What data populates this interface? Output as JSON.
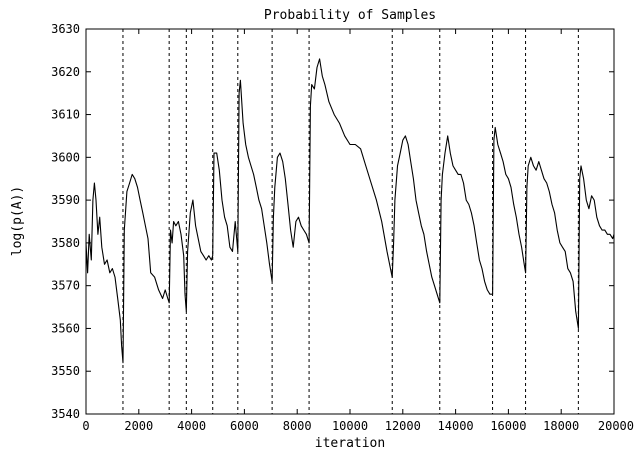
{
  "chart_data": {
    "type": "line",
    "title": "Probability of Samples",
    "xlabel": "iteration",
    "ylabel": "log(p(A))",
    "xlim": [
      0,
      20000
    ],
    "ylim": [
      3540,
      3630
    ],
    "grid": false,
    "legend": "none",
    "x_ticks": [
      0,
      2000,
      4000,
      6000,
      8000,
      10000,
      12000,
      14000,
      16000,
      18000,
      20000
    ],
    "y_ticks": [
      3540,
      3550,
      3560,
      3570,
      3580,
      3590,
      3600,
      3610,
      3620,
      3630
    ],
    "vertical_lines": [
      1400,
      3150,
      3800,
      4800,
      5750,
      7050,
      8450,
      11600,
      13400,
      15400,
      16650,
      18650
    ],
    "series": [
      {
        "color": "#000000",
        "x": [
          0,
          60,
          120,
          200,
          260,
          320,
          380,
          450,
          520,
          600,
          700,
          800,
          900,
          1000,
          1100,
          1200,
          1300,
          1350,
          1400,
          1450,
          1550,
          1650,
          1750,
          1850,
          1950,
          2050,
          2150,
          2250,
          2350,
          2450,
          2600,
          2750,
          2900,
          3000,
          3100,
          3150,
          3200,
          3260,
          3320,
          3400,
          3500,
          3600,
          3700,
          3750,
          3800,
          3850,
          3950,
          4050,
          4150,
          4250,
          4350,
          4450,
          4550,
          4650,
          4750,
          4800,
          4850,
          4950,
          5050,
          5150,
          5250,
          5350,
          5450,
          5550,
          5650,
          5750,
          5800,
          5850,
          5950,
          6050,
          6150,
          6250,
          6350,
          6450,
          6550,
          6650,
          6750,
          6850,
          6950,
          7050,
          7100,
          7150,
          7250,
          7350,
          7450,
          7550,
          7650,
          7750,
          7850,
          7950,
          8050,
          8150,
          8250,
          8350,
          8450,
          8500,
          8550,
          8650,
          8750,
          8850,
          8950,
          9050,
          9200,
          9400,
          9600,
          9800,
          10000,
          10200,
          10400,
          10600,
          10800,
          11000,
          11200,
          11400,
          11500,
          11600,
          11650,
          11700,
          11800,
          11900,
          12000,
          12100,
          12200,
          12300,
          12400,
          12500,
          12600,
          12700,
          12800,
          12900,
          13000,
          13100,
          13200,
          13300,
          13400,
          13450,
          13500,
          13600,
          13700,
          13800,
          13900,
          14000,
          14100,
          14200,
          14300,
          14400,
          14500,
          14600,
          14700,
          14800,
          14900,
          15000,
          15100,
          15200,
          15300,
          15400,
          15450,
          15500,
          15600,
          15700,
          15800,
          15900,
          16000,
          16100,
          16200,
          16300,
          16400,
          16500,
          16600,
          16650,
          16700,
          16750,
          16850,
          16950,
          17050,
          17150,
          17250,
          17350,
          17450,
          17550,
          17650,
          17750,
          17850,
          17950,
          18050,
          18150,
          18250,
          18350,
          18450,
          18550,
          18650,
          18700,
          18750,
          18850,
          18950,
          19050,
          19150,
          19250,
          19350,
          19450,
          19550,
          19650,
          19750,
          19850,
          19950,
          20000
        ],
        "y": [
          3580,
          3573,
          3582,
          3576,
          3590,
          3594,
          3590,
          3582,
          3586,
          3579,
          3575,
          3576,
          3573,
          3574,
          3572,
          3567,
          3562,
          3556,
          3552,
          3583,
          3592,
          3594,
          3596,
          3595,
          3593,
          3590,
          3587,
          3584,
          3581,
          3573,
          3572,
          3569,
          3567,
          3569,
          3567,
          3566,
          3583,
          3580,
          3585,
          3584,
          3585,
          3582,
          3577,
          3568,
          3564,
          3578,
          3587,
          3590,
          3584,
          3581,
          3578,
          3577,
          3576,
          3577,
          3576,
          3577,
          3601,
          3601,
          3597,
          3590,
          3586,
          3584,
          3579,
          3578,
          3585,
          3578,
          3615,
          3618,
          3608,
          3603,
          3600,
          3598,
          3596,
          3593,
          3590,
          3588,
          3584,
          3580,
          3575,
          3571,
          3586,
          3593,
          3600,
          3601,
          3599,
          3595,
          3589,
          3583,
          3579,
          3585,
          3586,
          3584,
          3583,
          3582,
          3580,
          3612,
          3617,
          3616,
          3621,
          3623,
          3619,
          3617,
          3613,
          3610,
          3608,
          3605,
          3603,
          3603,
          3602,
          3598,
          3594,
          3590,
          3585,
          3578,
          3575,
          3572,
          3580,
          3590,
          3598,
          3601,
          3604,
          3605,
          3603,
          3599,
          3595,
          3590,
          3587,
          3584,
          3582,
          3578,
          3575,
          3572,
          3570,
          3568,
          3566,
          3590,
          3596,
          3601,
          3605,
          3601,
          3598,
          3597,
          3596,
          3596,
          3594,
          3590,
          3589,
          3587,
          3584,
          3580,
          3576,
          3574,
          3571,
          3569,
          3568,
          3568,
          3604,
          3607,
          3603,
          3601,
          3599,
          3596,
          3595,
          3593,
          3589,
          3586,
          3582,
          3579,
          3575,
          3573,
          3593,
          3598,
          3600,
          3598,
          3597,
          3599,
          3597,
          3595,
          3594,
          3592,
          3589,
          3587,
          3583,
          3580,
          3579,
          3578,
          3574,
          3573,
          3571,
          3564,
          3560,
          3595,
          3598,
          3595,
          3590,
          3588,
          3591,
          3590,
          3586,
          3584,
          3583,
          3583,
          3582,
          3582,
          3581,
          3582
        ]
      }
    ]
  }
}
